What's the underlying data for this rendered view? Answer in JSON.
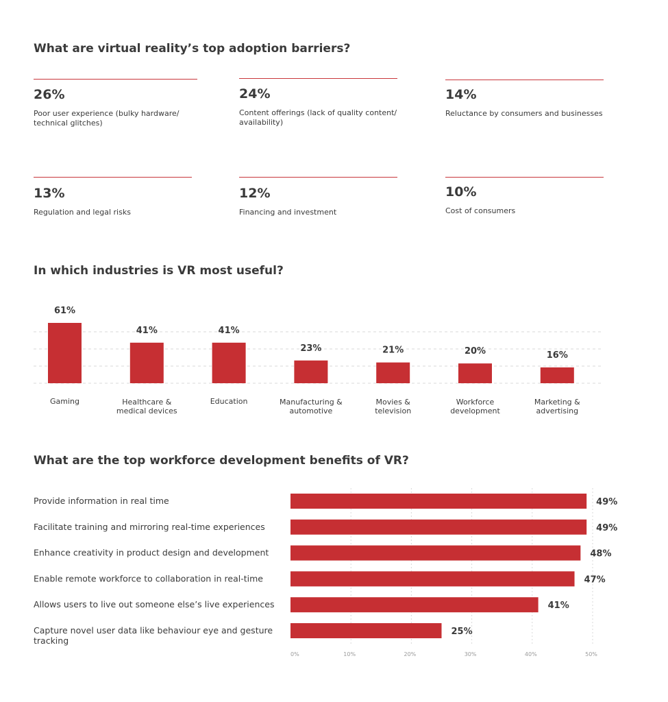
{
  "section1": {
    "title": "What are virtual reality’s top adoption barriers?",
    "stats": [
      {
        "value": "26%",
        "label_lines": [
          "Poor user experience (bulky hardware/",
          "technical glitches)"
        ]
      },
      {
        "value": "24%",
        "label_lines": [
          "Content offerings (lack of quality content/",
          "availability)"
        ]
      },
      {
        "value": "14%",
        "label_lines": [
          "Reluctance by consumers and businesses"
        ]
      },
      {
        "value": "13%",
        "label_lines": [
          "Regulation and legal risks"
        ]
      },
      {
        "value": "12%",
        "label_lines": [
          "Financing and investment"
        ]
      },
      {
        "value": "10%",
        "label_lines": [
          "Cost of consumers"
        ]
      }
    ]
  },
  "section2": {
    "title": "In which industries is VR most useful?"
  },
  "section3": {
    "title": "What are the top workforce development benefits of VR?"
  },
  "colors": {
    "accent": "#c8353a",
    "bar": "#c62f33",
    "text": "#3a3a3a",
    "grid": "#d9d9d9",
    "tick": "#9a9a9a"
  },
  "chart_data": [
    {
      "type": "bar",
      "orientation": "vertical",
      "title": "In which industries is VR most useful?",
      "categories": [
        [
          "Gaming"
        ],
        [
          "Healthcare &",
          "medical devices"
        ],
        [
          "Education"
        ],
        [
          "Manufacturing &",
          "automotive"
        ],
        [
          "Movies &",
          "television"
        ],
        [
          "Workforce",
          "development"
        ],
        [
          "Marketing &",
          "advertising"
        ]
      ],
      "values": [
        61,
        41,
        41,
        23,
        21,
        20,
        16
      ],
      "data_labels": [
        "61%",
        "41%",
        "41%",
        "23%",
        "21%",
        "20%",
        "16%"
      ],
      "grid": "dashed horizontal",
      "ylim": [
        0,
        61
      ]
    },
    {
      "type": "bar",
      "orientation": "horizontal",
      "title": "What are the top workforce development benefits of VR?",
      "categories": [
        [
          "Provide information in real time"
        ],
        [
          "Facilitate training and mirroring real-time experiences"
        ],
        [
          "Enhance creativity in product design and development"
        ],
        [
          "Enable remote workforce to collaboration in real-time"
        ],
        [
          "Allows users to live out someone else’s live experiences"
        ],
        [
          "Capture novel user data like behaviour eye and gesture",
          "tracking"
        ]
      ],
      "values": [
        49,
        49,
        48,
        47,
        41,
        25
      ],
      "data_labels": [
        "49%",
        "49%",
        "48%",
        "47%",
        "41%",
        "25%"
      ],
      "xticks": [
        "0%",
        "10%",
        "20%",
        "30%",
        "40%",
        "50%"
      ],
      "xlim": [
        0,
        50
      ],
      "grid": "dotted vertical"
    }
  ]
}
